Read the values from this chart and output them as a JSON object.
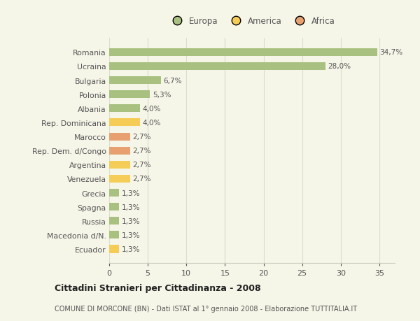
{
  "categories": [
    "Romania",
    "Ucraina",
    "Bulgaria",
    "Polonia",
    "Albania",
    "Rep. Dominicana",
    "Marocco",
    "Rep. Dem. d/Congo",
    "Argentina",
    "Venezuela",
    "Grecia",
    "Spagna",
    "Russia",
    "Macedonia d/N.",
    "Ecuador"
  ],
  "values": [
    34.7,
    28.0,
    6.7,
    5.3,
    4.0,
    4.0,
    2.7,
    2.7,
    2.7,
    2.7,
    1.3,
    1.3,
    1.3,
    1.3,
    1.3
  ],
  "labels": [
    "34,7%",
    "28,0%",
    "6,7%",
    "5,3%",
    "4,0%",
    "4,0%",
    "2,7%",
    "2,7%",
    "2,7%",
    "2,7%",
    "1,3%",
    "1,3%",
    "1,3%",
    "1,3%",
    "1,3%"
  ],
  "continent": [
    "Europa",
    "Europa",
    "Europa",
    "Europa",
    "Europa",
    "America",
    "Africa",
    "Africa",
    "America",
    "America",
    "Europa",
    "Europa",
    "Europa",
    "Europa",
    "America"
  ],
  "colors": {
    "Europa": "#a8c080",
    "America": "#f5cc55",
    "Africa": "#e8a070"
  },
  "legend_labels": [
    "Europa",
    "America",
    "Africa"
  ],
  "legend_colors": [
    "#a8c080",
    "#f5cc55",
    "#e8a070"
  ],
  "xlim": [
    0,
    37
  ],
  "xticks": [
    0,
    5,
    10,
    15,
    20,
    25,
    30,
    35
  ],
  "title": "Cittadini Stranieri per Cittadinanza - 2008",
  "subtitle": "COMUNE DI MORCONE (BN) - Dati ISTAT al 1° gennaio 2008 - Elaborazione TUTTITALIA.IT",
  "bg_color": "#f5f5e8",
  "grid_color": "#ddddcc",
  "bar_height": 0.55
}
